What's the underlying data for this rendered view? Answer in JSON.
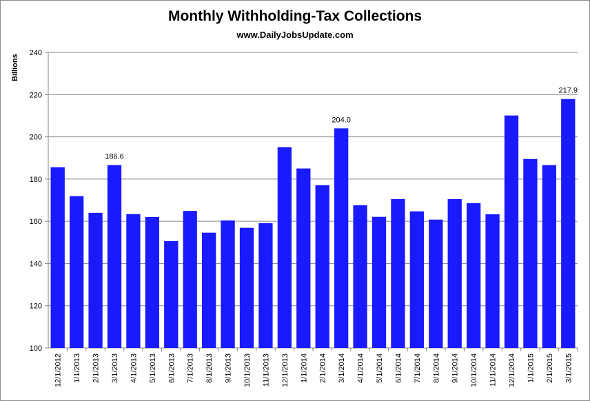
{
  "chart_data": {
    "type": "bar",
    "title": "Monthly Withholding-Tax Collections",
    "subtitle": "www.DailyJobsUpdate.com",
    "ylabel": "Billions",
    "xlabel": "",
    "ylim": [
      100,
      240
    ],
    "yticks": [
      100,
      120,
      140,
      160,
      180,
      200,
      220,
      240
    ],
    "grid": true,
    "legend": "none",
    "bar_color": "#1a1aff",
    "categories": [
      "12/1/2012",
      "1/1/2013",
      "2/1/2013",
      "3/1/2013",
      "4/1/2013",
      "5/1/2013",
      "6/1/2013",
      "7/1/2013",
      "8/1/2013",
      "9/1/2013",
      "10/1/2013",
      "11/1/2013",
      "12/1/2013",
      "1/1/2014",
      "2/1/2014",
      "3/1/2014",
      "4/1/2014",
      "5/1/2014",
      "6/1/2014",
      "7/1/2014",
      "8/1/2014",
      "9/1/2014",
      "10/1/2014",
      "11/1/2014",
      "12/1/2014",
      "1/1/2015",
      "2/1/2015",
      "3/1/2015"
    ],
    "values": [
      185.6,
      171.9,
      164.0,
      186.6,
      163.4,
      162.0,
      150.6,
      164.9,
      154.6,
      160.4,
      156.9,
      159.1,
      195.1,
      185.0,
      177.1,
      204.0,
      167.6,
      162.1,
      170.5,
      164.7,
      160.8,
      170.5,
      168.6,
      163.3,
      210.1,
      189.5,
      186.6,
      217.9
    ],
    "annotations": [
      {
        "index": 3,
        "text": "186.6"
      },
      {
        "index": 15,
        "text": "204.0"
      },
      {
        "index": 27,
        "text": "217.9"
      }
    ]
  }
}
